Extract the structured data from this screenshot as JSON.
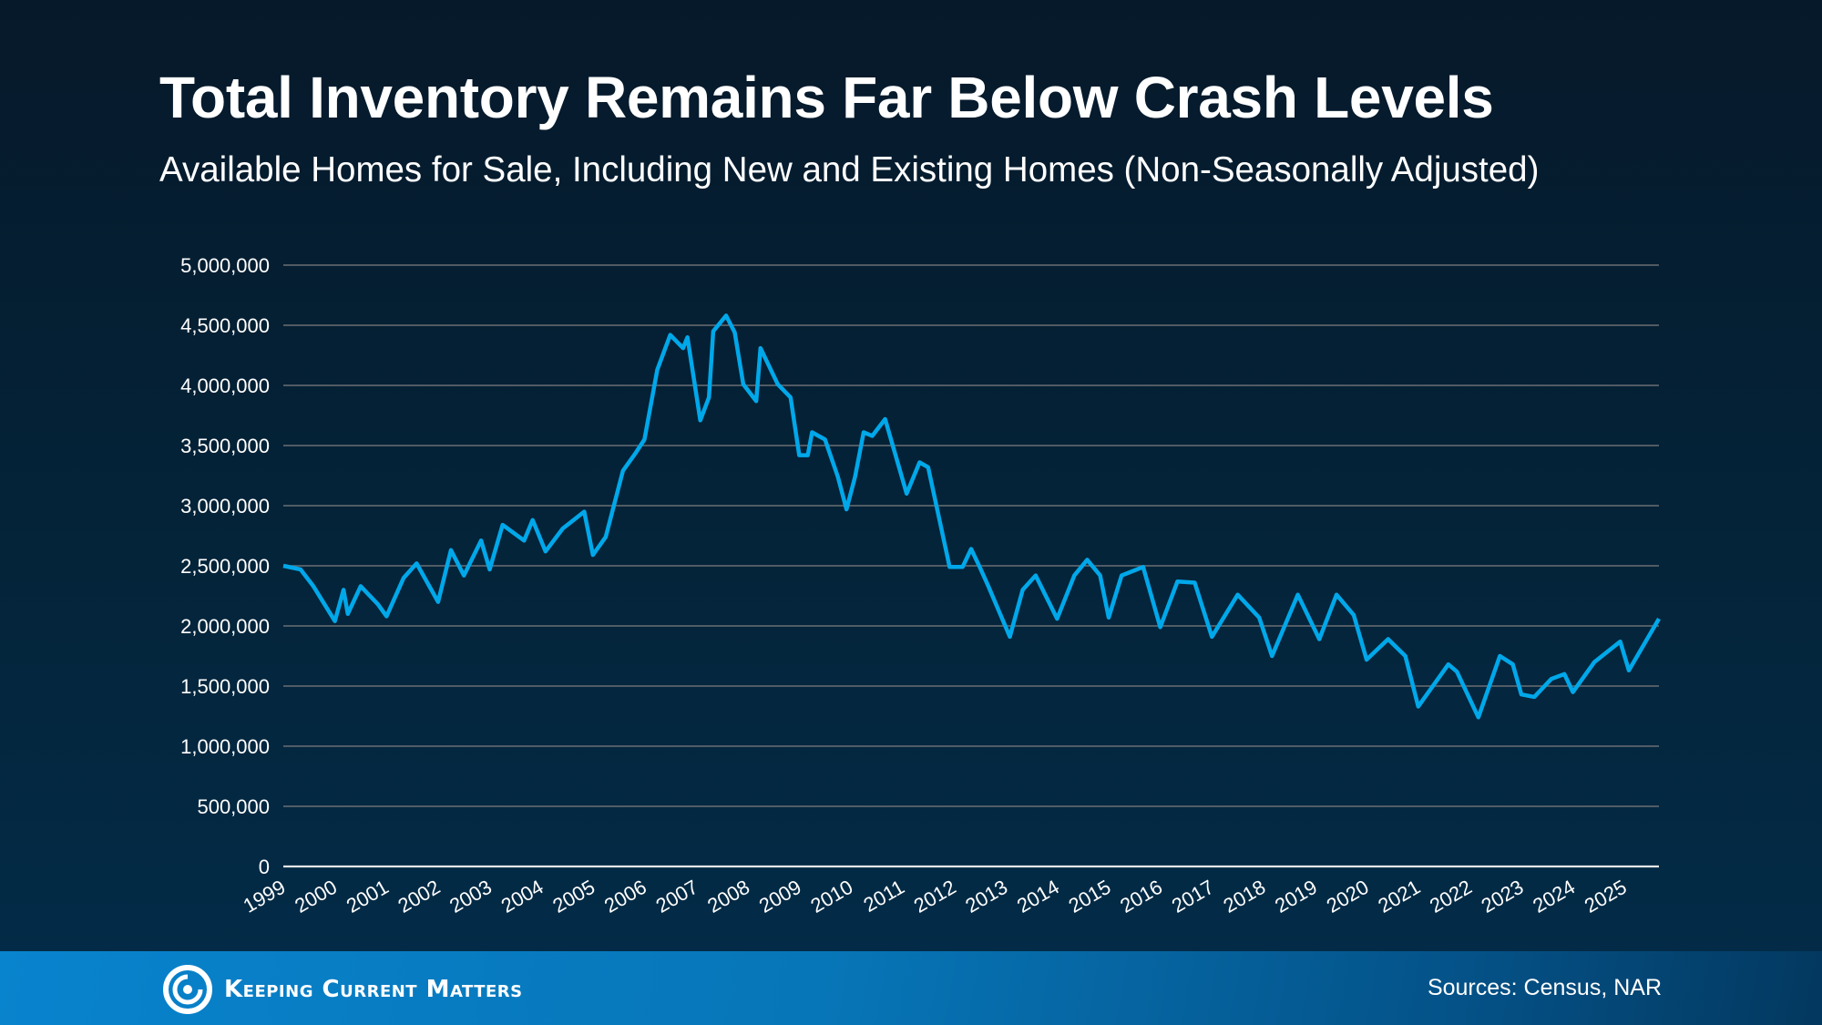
{
  "title": "Total Inventory Remains Far Below Crash Levels",
  "subtitle": "Available Homes for Sale, Including New and Existing Homes (Non-Seasonally Adjusted)",
  "footer": {
    "brand": "Keeping Current Matters",
    "sources": "Sources: Census, NAR",
    "background_color": "#0883cd"
  },
  "chart_data": {
    "type": "line",
    "title": "Total Inventory Remains Far Below Crash Levels",
    "xlabel": "",
    "ylabel": "",
    "ylim": [
      0,
      5000000
    ],
    "xlim": [
      "1999-01",
      "2025-09"
    ],
    "yticks": [
      0,
      500000,
      1000000,
      1500000,
      2000000,
      2500000,
      3000000,
      3500000,
      4000000,
      4500000,
      5000000
    ],
    "ytick_labels": [
      "0",
      "500,000",
      "1,000,000",
      "1,500,000",
      "2,000,000",
      "2,500,000",
      "3,000,000",
      "3,500,000",
      "4,000,000",
      "4,500,000",
      "5,000,000"
    ],
    "xtick_labels": [
      "1999",
      "2000",
      "2001",
      "2002",
      "2003",
      "2004",
      "2005",
      "2006",
      "2007",
      "2008",
      "2009",
      "2010",
      "2011",
      "2012",
      "2013",
      "2014",
      "2015",
      "2016",
      "2017",
      "2018",
      "2019",
      "2020",
      "2021",
      "2022",
      "2023",
      "2024",
      "2025"
    ],
    "grid": "horizontal",
    "line_color": "#00a8ea",
    "grid_color": "#6b6f73",
    "points": [
      [
        "1999-01",
        2500000
      ],
      [
        "1999-05",
        2470000
      ],
      [
        "1999-08",
        2330000
      ],
      [
        "2000-01",
        2040000
      ],
      [
        "2000-03",
        2300000
      ],
      [
        "2000-04",
        2100000
      ],
      [
        "2000-07",
        2330000
      ],
      [
        "2000-11",
        2180000
      ],
      [
        "2001-01",
        2080000
      ],
      [
        "2001-05",
        2400000
      ],
      [
        "2001-08",
        2520000
      ],
      [
        "2002-01",
        2200000
      ],
      [
        "2002-04",
        2630000
      ],
      [
        "2002-07",
        2420000
      ],
      [
        "2002-11",
        2710000
      ],
      [
        "2003-01",
        2470000
      ],
      [
        "2003-04",
        2840000
      ],
      [
        "2003-09",
        2710000
      ],
      [
        "2003-11",
        2880000
      ],
      [
        "2004-02",
        2620000
      ],
      [
        "2004-06",
        2810000
      ],
      [
        "2004-11",
        2950000
      ],
      [
        "2005-01",
        2590000
      ],
      [
        "2005-04",
        2740000
      ],
      [
        "2005-08",
        3290000
      ],
      [
        "2005-11",
        3440000
      ],
      [
        "2006-01",
        3550000
      ],
      [
        "2006-04",
        4130000
      ],
      [
        "2006-07",
        4420000
      ],
      [
        "2006-10",
        4310000
      ],
      [
        "2006-11",
        4400000
      ],
      [
        "2007-02",
        3710000
      ],
      [
        "2007-04",
        3900000
      ],
      [
        "2007-05",
        4450000
      ],
      [
        "2007-08",
        4580000
      ],
      [
        "2007-10",
        4440000
      ],
      [
        "2007-12",
        4010000
      ],
      [
        "2008-03",
        3870000
      ],
      [
        "2008-04",
        4310000
      ],
      [
        "2008-08",
        4010000
      ],
      [
        "2008-11",
        3900000
      ],
      [
        "2009-01",
        3420000
      ],
      [
        "2009-03",
        3420000
      ],
      [
        "2009-04",
        3610000
      ],
      [
        "2009-07",
        3550000
      ],
      [
        "2009-10",
        3240000
      ],
      [
        "2009-12",
        2970000
      ],
      [
        "2010-02",
        3240000
      ],
      [
        "2010-04",
        3610000
      ],
      [
        "2010-06",
        3580000
      ],
      [
        "2010-09",
        3720000
      ],
      [
        "2011-02",
        3100000
      ],
      [
        "2011-05",
        3360000
      ],
      [
        "2011-07",
        3320000
      ],
      [
        "2011-12",
        2490000
      ],
      [
        "2012-03",
        2490000
      ],
      [
        "2012-05",
        2640000
      ],
      [
        "2012-07",
        2490000
      ],
      [
        "2012-09",
        2330000
      ],
      [
        "2013-02",
        1910000
      ],
      [
        "2013-05",
        2300000
      ],
      [
        "2013-08",
        2420000
      ],
      [
        "2014-01",
        2060000
      ],
      [
        "2014-05",
        2420000
      ],
      [
        "2014-08",
        2550000
      ],
      [
        "2014-11",
        2420000
      ],
      [
        "2015-01",
        2070000
      ],
      [
        "2015-04",
        2420000
      ],
      [
        "2015-09",
        2490000
      ],
      [
        "2016-01",
        1990000
      ],
      [
        "2016-05",
        2370000
      ],
      [
        "2016-09",
        2360000
      ],
      [
        "2017-01",
        1910000
      ],
      [
        "2017-07",
        2260000
      ],
      [
        "2017-12",
        2070000
      ],
      [
        "2018-03",
        1750000
      ],
      [
        "2018-09",
        2260000
      ],
      [
        "2019-02",
        1890000
      ],
      [
        "2019-06",
        2260000
      ],
      [
        "2019-10",
        2090000
      ],
      [
        "2020-01",
        1720000
      ],
      [
        "2020-06",
        1890000
      ],
      [
        "2020-10",
        1750000
      ],
      [
        "2021-01",
        1330000
      ],
      [
        "2021-08",
        1680000
      ],
      [
        "2021-10",
        1620000
      ],
      [
        "2022-03",
        1240000
      ],
      [
        "2022-08",
        1750000
      ],
      [
        "2022-11",
        1680000
      ],
      [
        "2023-01",
        1430000
      ],
      [
        "2023-04",
        1410000
      ],
      [
        "2023-08",
        1560000
      ],
      [
        "2023-11",
        1600000
      ],
      [
        "2024-01",
        1450000
      ],
      [
        "2024-06",
        1700000
      ],
      [
        "2024-12",
        1870000
      ],
      [
        "2025-02",
        1630000
      ],
      [
        "2025-09",
        2060000
      ]
    ]
  }
}
